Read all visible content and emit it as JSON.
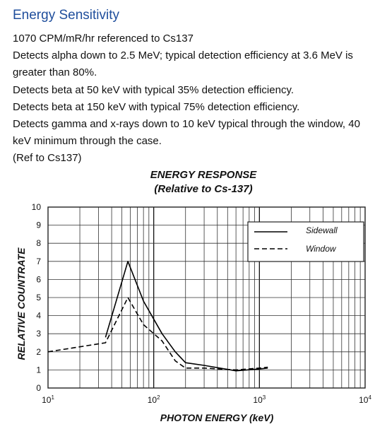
{
  "page": {
    "heading": "Energy Sensitivity",
    "lines": [
      "1070 CPM/mR/hr referenced to Cs137",
      "Detects alpha down to 2.5 MeV; typical detection efficiency at 3.6 MeV is greater than 80%.",
      "Detects beta at 50 keV with typical 35% detection efficiency.",
      "Detects beta at 150 keV with typical 75% detection efficiency.",
      "Detects gamma and x-rays down to 10 keV typical through the window, 40 keV minimum through the case.",
      "(Ref to Cs137)"
    ]
  },
  "chart_data": {
    "type": "line",
    "title": "ENERGY RESPONSE",
    "subtitle": "(Relative to Cs-137)",
    "xlabel": "PHOTON ENERGY (keV)",
    "ylabel": "RELATIVE COUNTRATE",
    "x_scale": "log",
    "xlim": [
      10,
      10000
    ],
    "ylim": [
      0,
      10
    ],
    "x_tick_labels": [
      {
        "base": "10",
        "exp": "1"
      },
      {
        "base": "10",
        "exp": "2"
      },
      {
        "base": "10",
        "exp": "3"
      },
      {
        "base": "10",
        "exp": "4"
      }
    ],
    "y_ticks": [
      "0",
      "1",
      "2",
      "3",
      "4",
      "5",
      "6",
      "7",
      "8",
      "9",
      "10"
    ],
    "grid": true,
    "legend_position": "top-right",
    "series": [
      {
        "name": "Sidewall",
        "style": "solid",
        "color": "#000000",
        "points": [
          [
            35,
            2.8
          ],
          [
            57,
            7.0
          ],
          [
            80,
            4.8
          ],
          [
            120,
            3.0
          ],
          [
            160,
            2.0
          ],
          [
            200,
            1.4
          ],
          [
            300,
            1.25
          ],
          [
            600,
            0.95
          ],
          [
            1000,
            1.05
          ],
          [
            1200,
            1.1
          ]
        ]
      },
      {
        "name": "Window",
        "style": "dashed",
        "color": "#000000",
        "points": [
          [
            10,
            2.0
          ],
          [
            35,
            2.5
          ],
          [
            57,
            5.0
          ],
          [
            80,
            3.5
          ],
          [
            120,
            2.6
          ],
          [
            160,
            1.5
          ],
          [
            200,
            1.1
          ],
          [
            300,
            1.1
          ],
          [
            600,
            1.0
          ],
          [
            1000,
            1.1
          ],
          [
            1200,
            1.15
          ]
        ]
      }
    ]
  }
}
